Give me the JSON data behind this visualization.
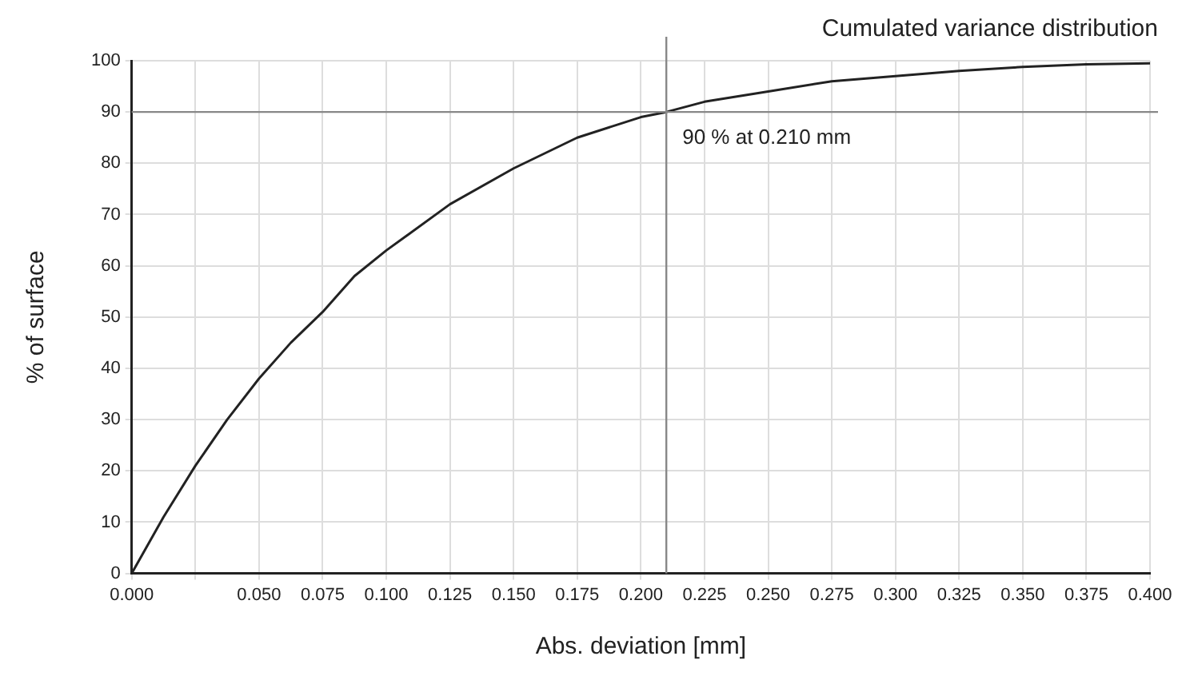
{
  "chart_data": {
    "type": "line",
    "title": "Cumulated variance distribution",
    "xlabel": "Abs. deviation [mm]",
    "ylabel": "% of surface",
    "x": [
      0,
      0.0125,
      0.025,
      0.0375,
      0.05,
      0.0625,
      0.075,
      0.0875,
      0.1,
      0.125,
      0.15,
      0.175,
      0.2,
      0.21,
      0.225,
      0.25,
      0.275,
      0.3,
      0.325,
      0.35,
      0.375,
      0.4
    ],
    "series": [
      {
        "color": "#222222",
        "values": [
          0,
          11,
          21,
          30,
          38,
          45,
          51,
          58,
          63,
          72,
          79,
          85,
          89,
          90,
          92,
          94,
          96,
          97,
          98,
          98.8,
          99.3,
          99.5
        ]
      }
    ],
    "xlim": [
      0,
      0.4
    ],
    "xticks": [
      {
        "value": 0,
        "label": "0.000"
      },
      {
        "value": 0.025,
        "label": null
      },
      {
        "value": 0.05,
        "label": "0.050"
      },
      {
        "value": 0.075,
        "label": "0.075"
      },
      {
        "value": 0.1,
        "label": "0.100"
      },
      {
        "value": 0.125,
        "label": "0.125"
      },
      {
        "value": 0.15,
        "label": "0.150"
      },
      {
        "value": 0.175,
        "label": "0.175"
      },
      {
        "value": 0.2,
        "label": "0.200"
      },
      {
        "value": 0.225,
        "label": "0.225"
      },
      {
        "value": 0.25,
        "label": "0.250"
      },
      {
        "value": 0.275,
        "label": "0.275"
      },
      {
        "value": 0.3,
        "label": "0.300"
      },
      {
        "value": 0.325,
        "label": "0.325"
      },
      {
        "value": 0.35,
        "label": "0.350"
      },
      {
        "value": 0.375,
        "label": "0.375"
      },
      {
        "value": 0.4,
        "label": "0.400"
      }
    ],
    "ylim": [
      0,
      100
    ],
    "yticks": [
      0,
      10,
      20,
      30,
      40,
      50,
      60,
      70,
      80,
      90,
      100
    ],
    "ref_lines": [
      {
        "axis": "x",
        "value": 0.21,
        "color": "#888888"
      },
      {
        "axis": "y",
        "value": 90,
        "color": "#888888"
      }
    ],
    "annotations": [
      {
        "text": "90 % at 0.210 mm",
        "x": 0.21,
        "y": 90
      }
    ],
    "grid": true,
    "legend": false,
    "marker": "none",
    "line_style": "solid"
  }
}
